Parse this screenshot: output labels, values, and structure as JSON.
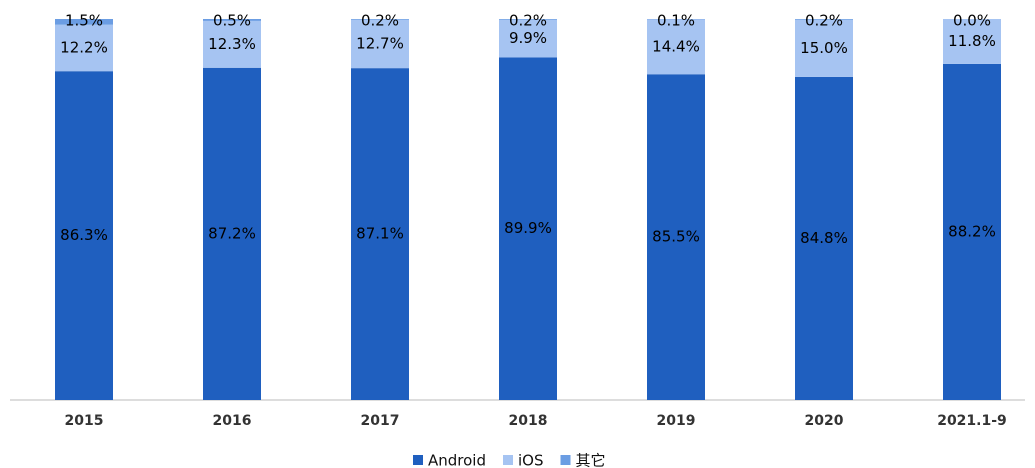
{
  "chart_data": {
    "type": "stacked_bar",
    "categories": [
      "2015",
      "2016",
      "2017",
      "2018",
      "2019",
      "2020",
      "2021.1-9"
    ],
    "series": [
      {
        "name": "Android",
        "color": "#1f5fbf",
        "values": [
          86.3,
          87.2,
          87.1,
          89.9,
          85.5,
          84.8,
          88.2
        ],
        "value_labels": [
          "86.3%",
          "87.2%",
          "87.1%",
          "89.9%",
          "85.5%",
          "84.8%",
          "88.2%"
        ]
      },
      {
        "name": "iOS",
        "color": "#a6c4f2",
        "values": [
          12.2,
          12.3,
          12.7,
          9.9,
          14.4,
          15.0,
          11.8
        ],
        "value_labels": [
          "12.2%",
          "12.3%",
          "12.7%",
          "9.9%",
          "14.4%",
          "15.0%",
          "11.8%"
        ]
      },
      {
        "name": "其它",
        "color": "#6b9de3",
        "values": [
          1.5,
          0.5,
          0.2,
          0.2,
          0.1,
          0.2,
          0.0
        ],
        "value_labels": [
          "1.5%",
          "0.5%",
          "0.2%",
          "0.2%",
          "0.1%",
          "0.2%",
          "0.0%"
        ]
      }
    ],
    "ylim": [
      0,
      100
    ],
    "legend": "bottom"
  }
}
